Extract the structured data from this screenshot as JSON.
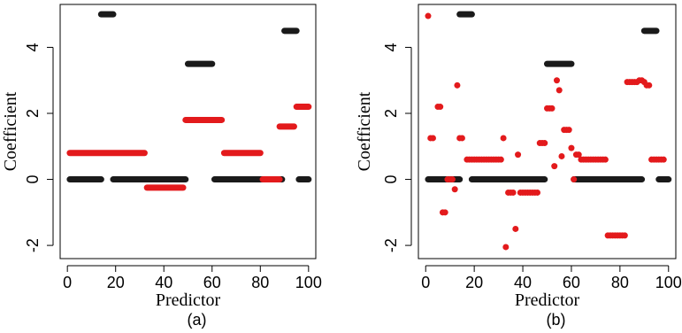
{
  "colors": {
    "black_series": "#1a1a1a",
    "red_series": "#e31a1c"
  },
  "chart_data": [
    {
      "type": "scatter",
      "panel_label": "(a)",
      "xlabel": "Predictor",
      "ylabel": "Coefficient",
      "xlim": [
        -3,
        103
      ],
      "ylim": [
        -2.4,
        5.3
      ],
      "xticks": [
        0,
        20,
        40,
        60,
        80,
        100
      ],
      "yticks": [
        -2,
        0,
        2,
        4
      ],
      "grid": false,
      "series": [
        {
          "color_key": "black_series",
          "segments": [
            {
              "x": [
                1,
                14
              ],
              "y": 0
            },
            {
              "x": 14,
              "y": 5.0,
              "x_end": 19
            },
            {
              "x": [
                19,
                49
              ],
              "y": 0
            },
            {
              "x": [
                50,
                60
              ],
              "y": 3.5
            },
            {
              "x": [
                61,
                89
              ],
              "y": 0
            },
            {
              "x": [
                90,
                95
              ],
              "y": 4.5
            },
            {
              "x": [
                96,
                100
              ],
              "y": 0
            }
          ]
        },
        {
          "color_key": "red_series",
          "segments": [
            {
              "x": [
                1,
                32
              ],
              "y": 0.8
            },
            {
              "x": [
                33,
                48
              ],
              "y": -0.25
            },
            {
              "x": [
                49,
                64
              ],
              "y": 1.8
            },
            {
              "x": [
                65,
                80
              ],
              "y": 0.8
            },
            {
              "x": [
                81,
                88
              ],
              "y": 0.0
            },
            {
              "x": [
                88,
                94
              ],
              "y": 1.6
            },
            {
              "x": [
                95,
                100
              ],
              "y": 2.2
            }
          ]
        }
      ]
    },
    {
      "type": "scatter",
      "panel_label": "(b)",
      "xlabel": "Predictor",
      "ylabel": "Coefficient",
      "xlim": [
        -3,
        103
      ],
      "ylim": [
        -2.4,
        5.3
      ],
      "xticks": [
        0,
        20,
        40,
        60,
        80,
        100
      ],
      "yticks": [
        -2,
        0,
        2,
        4
      ],
      "grid": false,
      "series": [
        {
          "color_key": "black_series",
          "segments": [
            {
              "x": [
                1,
                14
              ],
              "y": 0
            },
            {
              "x": [
                14,
                19
              ],
              "y": 5.0
            },
            {
              "x": [
                19,
                49
              ],
              "y": 0
            },
            {
              "x": [
                50,
                60
              ],
              "y": 3.5
            },
            {
              "x": [
                61,
                89
              ],
              "y": 0
            },
            {
              "x": [
                90,
                95
              ],
              "y": 4.5
            },
            {
              "x": [
                96,
                100
              ],
              "y": 0
            }
          ]
        },
        {
          "color_key": "red_series",
          "points": [
            [
              1,
              4.95
            ],
            [
              2,
              1.25
            ],
            [
              3,
              1.25
            ],
            [
              5,
              2.2
            ],
            [
              6,
              2.2
            ],
            [
              7,
              -1.0
            ],
            [
              8,
              -1.0
            ],
            [
              9,
              0.0
            ],
            [
              10,
              0.0
            ],
            [
              11,
              0.0
            ],
            [
              12,
              -0.3
            ],
            [
              13,
              2.85
            ],
            [
              14,
              1.25
            ],
            [
              15,
              1.25
            ],
            [
              17,
              0.6
            ],
            [
              18,
              0.6
            ],
            [
              19,
              0.6
            ],
            [
              20,
              0.6
            ],
            [
              21,
              0.6
            ],
            [
              22,
              0.6
            ],
            [
              23,
              0.6
            ],
            [
              24,
              0.6
            ],
            [
              25,
              0.6
            ],
            [
              26,
              0.6
            ],
            [
              27,
              0.6
            ],
            [
              28,
              0.6
            ],
            [
              29,
              0.6
            ],
            [
              30,
              0.6
            ],
            [
              31,
              0.6
            ],
            [
              32,
              1.25
            ],
            [
              33,
              -2.05
            ],
            [
              34,
              -0.4
            ],
            [
              35,
              -0.4
            ],
            [
              36,
              -0.4
            ],
            [
              37,
              -1.5
            ],
            [
              38,
              0.75
            ],
            [
              39,
              -0.4
            ],
            [
              40,
              -0.4
            ],
            [
              41,
              -0.4
            ],
            [
              42,
              -0.4
            ],
            [
              43,
              -0.4
            ],
            [
              44,
              -0.4
            ],
            [
              45,
              -0.4
            ],
            [
              46,
              -0.4
            ],
            [
              47,
              1.1
            ],
            [
              48,
              1.1
            ],
            [
              49,
              1.1
            ],
            [
              50,
              2.15
            ],
            [
              51,
              2.15
            ],
            [
              52,
              2.15
            ],
            [
              53,
              0.4
            ],
            [
              54,
              3.0
            ],
            [
              55,
              2.7
            ],
            [
              56,
              0.7
            ],
            [
              57,
              1.5
            ],
            [
              58,
              1.5
            ],
            [
              59,
              1.5
            ],
            [
              60,
              0.95
            ],
            [
              61,
              0.0
            ],
            [
              62,
              0.75
            ],
            [
              63,
              0.75
            ],
            [
              64,
              0.6
            ],
            [
              65,
              0.6
            ],
            [
              66,
              0.6
            ],
            [
              67,
              0.6
            ],
            [
              68,
              0.6
            ],
            [
              69,
              0.6
            ],
            [
              70,
              0.6
            ],
            [
              71,
              0.6
            ],
            [
              72,
              0.6
            ],
            [
              73,
              0.6
            ],
            [
              74,
              0.6
            ],
            [
              75,
              -1.7
            ],
            [
              76,
              -1.7
            ],
            [
              77,
              -1.7
            ],
            [
              78,
              -1.7
            ],
            [
              79,
              -1.7
            ],
            [
              80,
              -1.7
            ],
            [
              81,
              -1.7
            ],
            [
              82,
              -1.7
            ],
            [
              83,
              2.95
            ],
            [
              84,
              2.95
            ],
            [
              85,
              2.95
            ],
            [
              86,
              2.95
            ],
            [
              87,
              2.95
            ],
            [
              88,
              3.0
            ],
            [
              89,
              3.0
            ],
            [
              90,
              2.95
            ],
            [
              91,
              2.85
            ],
            [
              92,
              2.85
            ],
            [
              93,
              0.6
            ],
            [
              94,
              0.6
            ],
            [
              95,
              0.6
            ],
            [
              96,
              0.6
            ],
            [
              97,
              0.6
            ],
            [
              98,
              0.6
            ]
          ]
        }
      ]
    }
  ]
}
